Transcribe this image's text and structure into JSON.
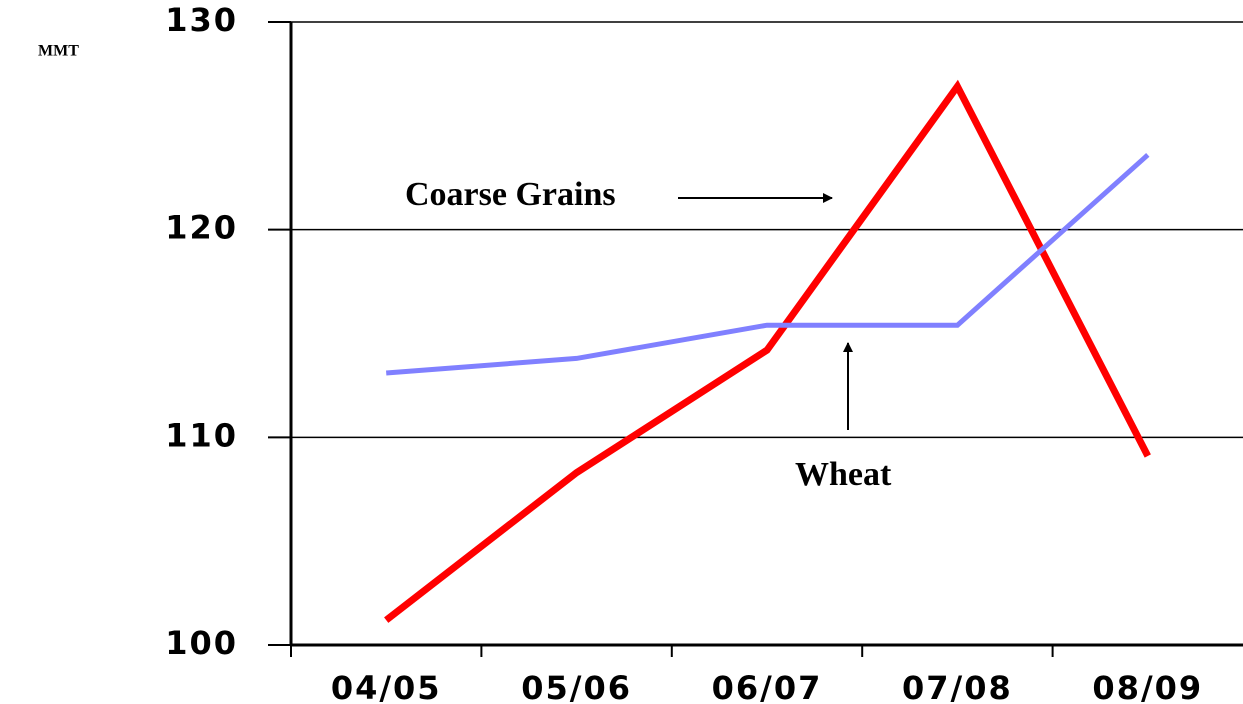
{
  "chart_data": {
    "type": "line",
    "y_label": "MMT",
    "categories": [
      "04/05",
      "05/06",
      "06/07",
      "07/08",
      "08/09"
    ],
    "series": [
      {
        "name": "Coarse Grains",
        "color": "#ff0000",
        "values": [
          101.2,
          108.3,
          114.2,
          126.9,
          109.1
        ]
      },
      {
        "name": "Wheat",
        "color": "#8080ff",
        "values": [
          113.1,
          113.8,
          115.4,
          115.4,
          123.6
        ]
      }
    ],
    "ylim": [
      100,
      130
    ],
    "yticks": [
      100,
      110,
      120,
      130
    ],
    "grid": true
  }
}
